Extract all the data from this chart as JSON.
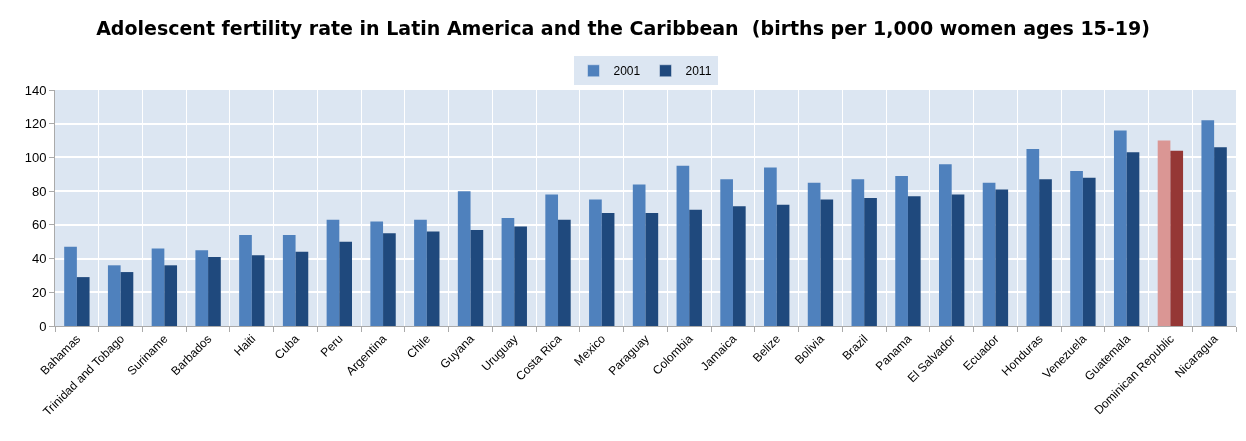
{
  "chart_data": {
    "type": "bar",
    "title": "Adolescent fertility rate in Latin America and the Caribbean  (births per 1,000 women ages 15-19)",
    "categories": [
      "Bahamas",
      "Trinidad and Tobago",
      "Suriname",
      "Barbados",
      "Haiti",
      "Cuba",
      "Peru",
      "Argentina",
      "Chile",
      "Guyana",
      "Uruguay",
      "Costa Rica",
      "Mexico",
      "Paraguay",
      "Colombia",
      "Jamaica",
      "Belize",
      "Bolivia",
      "Brazil",
      "Panama",
      "El Salvador",
      "Ecuador",
      "Honduras",
      "Venezuela",
      "Guatemala",
      "Dominican Republic",
      "Nicaragua"
    ],
    "series": [
      {
        "name": "2001",
        "color": "#4f81bd",
        "colors": [
          "#4f81bd",
          "#4f81bd",
          "#4f81bd",
          "#4f81bd",
          "#4f81bd",
          "#4f81bd",
          "#4f81bd",
          "#4f81bd",
          "#4f81bd",
          "#4f81bd",
          "#4f81bd",
          "#4f81bd",
          "#4f81bd",
          "#4f81bd",
          "#4f81bd",
          "#4f81bd",
          "#4f81bd",
          "#4f81bd",
          "#4f81bd",
          "#4f81bd",
          "#4f81bd",
          "#4f81bd",
          "#4f81bd",
          "#4f81bd",
          "#4f81bd",
          "#da9694",
          "#4f81bd"
        ],
        "values": [
          47,
          36,
          46,
          45,
          54,
          54,
          63,
          62,
          63,
          80,
          64,
          78,
          75,
          84,
          95,
          87,
          94,
          85,
          87,
          89,
          96,
          85,
          105,
          92,
          116,
          110,
          122
        ]
      },
      {
        "name": "2011",
        "color": "#1f497d",
        "colors": [
          "#1f497d",
          "#1f497d",
          "#1f497d",
          "#1f497d",
          "#1f497d",
          "#1f497d",
          "#1f497d",
          "#1f497d",
          "#1f497d",
          "#1f497d",
          "#1f497d",
          "#1f497d",
          "#1f497d",
          "#1f497d",
          "#1f497d",
          "#1f497d",
          "#1f497d",
          "#1f497d",
          "#1f497d",
          "#1f497d",
          "#1f497d",
          "#1f497d",
          "#1f497d",
          "#1f497d",
          "#1f497d",
          "#953735",
          "#1f497d"
        ],
        "values": [
          29,
          32,
          36,
          41,
          42,
          44,
          50,
          55,
          56,
          57,
          59,
          63,
          67,
          67,
          69,
          71,
          72,
          75,
          76,
          77,
          78,
          81,
          87,
          88,
          103,
          104,
          106
        ]
      }
    ],
    "ylim": [
      0,
      140
    ],
    "yticks": [
      0,
      20,
      40,
      60,
      80,
      100,
      120,
      140
    ],
    "grid": true,
    "legend": "top"
  }
}
